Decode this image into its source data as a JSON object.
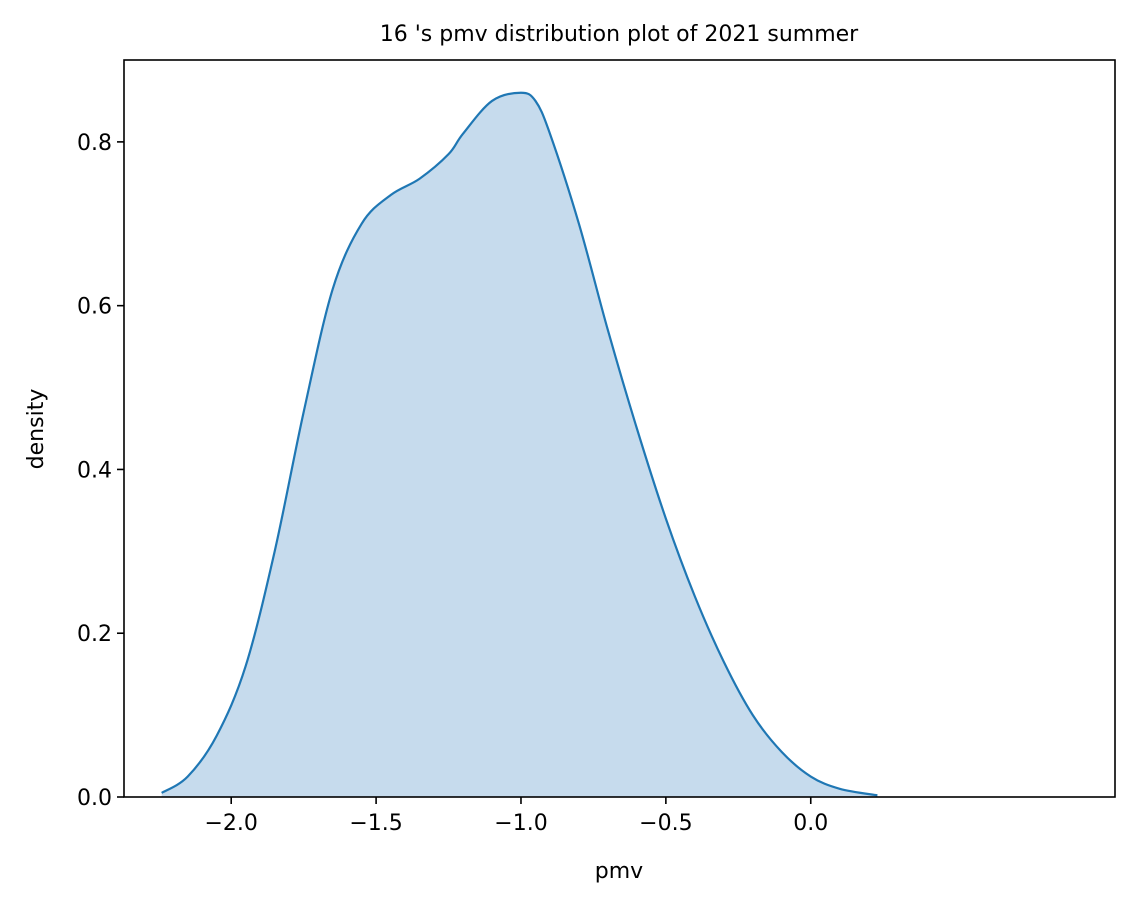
{
  "chart_data": {
    "type": "area",
    "title": "16 's pmv distribution plot of 2021 summer",
    "xlabel": "pmv",
    "ylabel": "density",
    "xlim": [
      -2.37,
      1.05
    ],
    "ylim": [
      0.0,
      0.9
    ],
    "xticks": [
      -2.0,
      -1.5,
      -1.0,
      -0.5,
      0.0
    ],
    "xtick_labels": [
      "−2.0",
      "−1.5",
      "−1.0",
      "−0.5",
      "0.0"
    ],
    "yticks": [
      0.0,
      0.2,
      0.4,
      0.6,
      0.8
    ],
    "ytick_labels": [
      "0.0",
      "0.2",
      "0.4",
      "0.6",
      "0.8"
    ],
    "grid": false,
    "legend": "none",
    "series": [
      {
        "line_color": "#1f77b4",
        "fill_color": "#c6dbed",
        "x": [
          -2.24,
          -2.15,
          -2.05,
          -1.95,
          -1.85,
          -1.75,
          -1.65,
          -1.55,
          -1.45,
          -1.35,
          -1.25,
          -1.2,
          -1.1,
          -1.0,
          -0.95,
          -0.9,
          -0.8,
          -0.7,
          -0.6,
          -0.5,
          -0.4,
          -0.3,
          -0.2,
          -0.1,
          0.0,
          0.1,
          0.23
        ],
        "y": [
          0.005,
          0.025,
          0.075,
          0.16,
          0.3,
          0.47,
          0.62,
          0.7,
          0.735,
          0.755,
          0.785,
          0.81,
          0.85,
          0.86,
          0.85,
          0.81,
          0.7,
          0.57,
          0.45,
          0.34,
          0.245,
          0.165,
          0.1,
          0.055,
          0.025,
          0.01,
          0.002
        ]
      }
    ]
  }
}
